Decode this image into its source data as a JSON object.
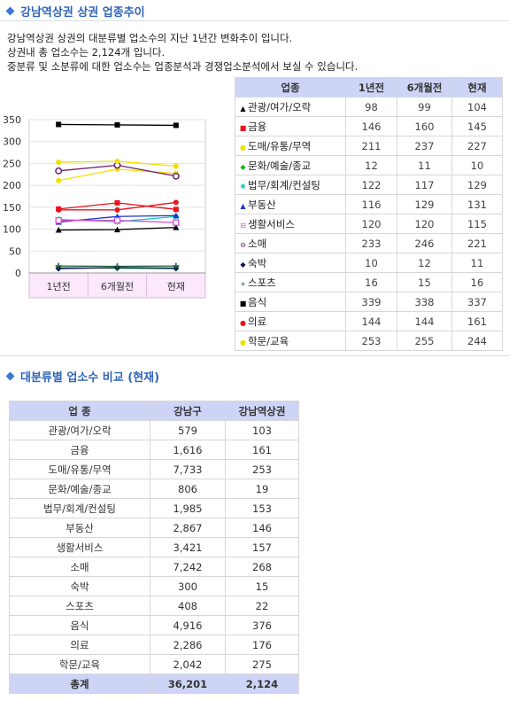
{
  "section1": {
    "title": "강남역상권 상권 업종추이"
  },
  "intro": {
    "line1": "강남역상권 상권의 대분류별 업소수의 지난 1년간 변화추이 입니다.",
    "line2": "상권내 총 업소수는 2,124개 입니다.",
    "line3": "중분류 및 소분류에 대한 업소수는 업종분석과 경쟁업소분석에서 보실 수 있습니다."
  },
  "trend_table": {
    "headers": [
      "업종",
      "1년전",
      "6개월전",
      "현재"
    ],
    "rows": [
      {
        "marker": "▲",
        "color": "#000000",
        "name": "관광/여가/오락",
        "values": [
          "98",
          "99",
          "104"
        ]
      },
      {
        "marker": "■",
        "color": "#e8141e",
        "name": "금융",
        "values": [
          "146",
          "160",
          "145"
        ]
      },
      {
        "marker": "●",
        "color": "#f0e000",
        "name": "도매/유통/무역",
        "values": [
          "211",
          "237",
          "227"
        ]
      },
      {
        "marker": "◆",
        "color": "#15b815",
        "name": "문화/예술/종교",
        "values": [
          "12",
          "11",
          "10"
        ]
      },
      {
        "marker": "✱",
        "color": "#16c9b8",
        "name": "법무/회계/컨설팅",
        "values": [
          "122",
          "117",
          "129"
        ]
      },
      {
        "marker": "▲",
        "color": "#1b35d6",
        "name": "부동산",
        "values": [
          "116",
          "129",
          "131"
        ]
      },
      {
        "marker": "⊟",
        "color": "#d44fd0",
        "name": "생활서비스",
        "values": [
          "120",
          "120",
          "115"
        ]
      },
      {
        "marker": "⊖",
        "color": "#6b1f6b",
        "name": "소매",
        "values": [
          "233",
          "246",
          "221"
        ]
      },
      {
        "marker": "◆",
        "color": "#101060",
        "name": "숙박",
        "values": [
          "10",
          "12",
          "11"
        ]
      },
      {
        "marker": "+",
        "color": "#1f5f40",
        "name": "스포츠",
        "values": [
          "16",
          "15",
          "16"
        ]
      },
      {
        "marker": "■",
        "color": "#000000",
        "name": "음식",
        "values": [
          "339",
          "338",
          "337"
        ]
      },
      {
        "marker": "●",
        "color": "#e8141e",
        "name": "의료",
        "values": [
          "144",
          "144",
          "161"
        ]
      },
      {
        "marker": "●",
        "color": "#f0e000",
        "name": "학문/교육",
        "values": [
          "253",
          "255",
          "244"
        ]
      }
    ]
  },
  "chart_data": {
    "type": "line",
    "x": [
      "1년전",
      "6개월전",
      "현재"
    ],
    "ylim": [
      0,
      350
    ],
    "yticks": [
      "0",
      "50",
      "100",
      "150",
      "200",
      "250",
      "300",
      "350"
    ],
    "grid": true,
    "legend": "none",
    "series": [
      {
        "name": "관광/여가/오락",
        "color": "#000000",
        "marker": "triangle",
        "values": [
          98,
          99,
          104
        ]
      },
      {
        "name": "금융",
        "color": "#e8141e",
        "marker": "square",
        "values": [
          146,
          160,
          145
        ]
      },
      {
        "name": "도매/유통/무역",
        "color": "#f0e000",
        "marker": "circle",
        "values": [
          211,
          237,
          227
        ]
      },
      {
        "name": "문화/예술/종교",
        "color": "#15b815",
        "marker": "diamond",
        "values": [
          12,
          11,
          10
        ]
      },
      {
        "name": "법무/회계/컨설팅",
        "color": "#16c9b8",
        "marker": "star",
        "values": [
          122,
          117,
          129
        ]
      },
      {
        "name": "부동산",
        "color": "#1b35d6",
        "marker": "triangle",
        "values": [
          116,
          129,
          131
        ]
      },
      {
        "name": "생활서비스",
        "color": "#d44fd0",
        "marker": "square-open",
        "values": [
          120,
          120,
          115
        ]
      },
      {
        "name": "소매",
        "color": "#6b1f6b",
        "marker": "circle-open",
        "values": [
          233,
          246,
          221
        ]
      },
      {
        "name": "숙박",
        "color": "#101060",
        "marker": "diamond",
        "values": [
          10,
          12,
          11
        ]
      },
      {
        "name": "스포츠",
        "color": "#1f5f40",
        "marker": "plus",
        "values": [
          16,
          15,
          16
        ]
      },
      {
        "name": "음식",
        "color": "#000000",
        "marker": "square",
        "values": [
          339,
          338,
          337
        ]
      },
      {
        "name": "의료",
        "color": "#e8141e",
        "marker": "circle",
        "values": [
          144,
          144,
          161
        ]
      },
      {
        "name": "학문/교육",
        "color": "#f0e000",
        "marker": "circle",
        "values": [
          253,
          255,
          244
        ]
      }
    ]
  },
  "section2": {
    "title": "대분류별 업소수 비교 (현재)"
  },
  "compare_table": {
    "headers": [
      "업 종",
      "강남구",
      "강남역상권"
    ],
    "rows": [
      [
        "관광/여가/오락",
        "579",
        "103"
      ],
      [
        "금융",
        "1,616",
        "161"
      ],
      [
        "도매/유통/무역",
        "7,733",
        "253"
      ],
      [
        "문화/예술/종교",
        "806",
        "19"
      ],
      [
        "법무/회계/컨설팅",
        "1,985",
        "153"
      ],
      [
        "부동산",
        "2,867",
        "146"
      ],
      [
        "생활서비스",
        "3,421",
        "157"
      ],
      [
        "소매",
        "7,242",
        "268"
      ],
      [
        "숙박",
        "300",
        "15"
      ],
      [
        "스포츠",
        "408",
        "22"
      ],
      [
        "음식",
        "4,916",
        "376"
      ],
      [
        "의료",
        "2,286",
        "176"
      ],
      [
        "학문/교육",
        "2,042",
        "275"
      ]
    ],
    "total": [
      "총계",
      "36,201",
      "2,124"
    ]
  }
}
